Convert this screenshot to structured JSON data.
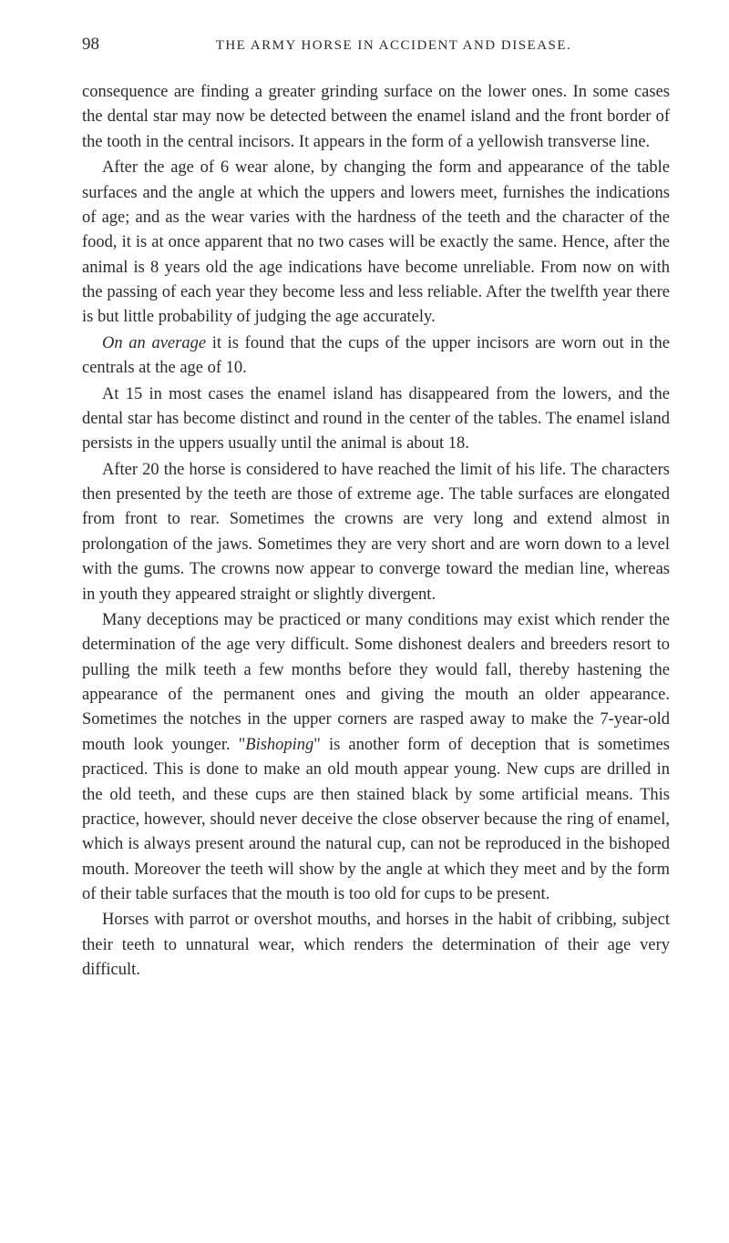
{
  "header": {
    "page_number": "98",
    "running_title": "THE ARMY HORSE IN ACCIDENT AND DISEASE."
  },
  "paragraphs": {
    "p1": "consequence are finding a greater grinding surface on the lower ones. In some cases the dental star may now be detected between the enamel island and the front border of the tooth in the central incisors. It appears in the form of a yellowish transverse line.",
    "p2": "After the age of 6 wear alone, by changing the form and appearance of the table surfaces and the angle at which the uppers and lowers meet, furnishes the indications of age; and as the wear varies with the hardness of the teeth and the character of the food, it is at once apparent that no two cases will be exactly the same. Hence, after the animal is 8 years old the age indications have become unreliable. From now on with the passing of each year they become less and less reliable. After the twelfth year there is but little probability of judging the age accurately.",
    "p3_italic": "On an average",
    "p3_rest": " it is found that the cups of the upper incisors are worn out in the centrals at the age of 10.",
    "p4": "At 15 in most cases the enamel island has disappeared from the lowers, and the dental star has become distinct and round in the center of the tables. The enamel island persists in the uppers usually until the animal is about 18.",
    "p5": "After 20 the horse is considered to have reached the limit of his life. The characters then presented by the teeth are those of extreme age. The table surfaces are elongated from front to rear. Sometimes the crowns are very long and extend almost in prolongation of the jaws. Sometimes they are very short and are worn down to a level with the gums. The crowns now appear to converge toward the median line, whereas in youth they appeared straight or slightly divergent.",
    "p6a": "Many deceptions may be practiced or many conditions may exist which render the determination of the age very difficult. Some dishonest dealers and breeders resort to pulling the milk teeth a few months before they would fall, thereby hastening the appearance of the permanent ones and giving the mouth an older appearance. Sometimes the notches in the upper corners are rasped away to make the 7-year-old mouth look younger. \"",
    "p6_italic": "Bishoping",
    "p6b": "\" is another form of deception that is sometimes practiced. This is done to make an old mouth appear young. New cups are drilled in the old teeth, and these cups are then stained black by some artificial means. This practice, however, should never deceive the close observer because the ring of enamel, which is always present around the natural cup, can not be reproduced in the bishoped mouth. Moreover the teeth will show by the angle at which they meet and by the form of their table surfaces that the mouth is too old for cups to be present.",
    "p7": "Horses with parrot or overshot mouths, and horses in the habit of cribbing, subject their teeth to unnatural wear, which renders the determination of their age very difficult."
  }
}
